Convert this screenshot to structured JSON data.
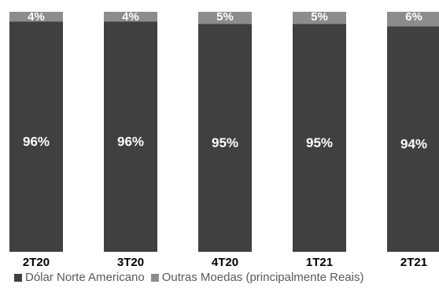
{
  "chart_data": {
    "type": "bar",
    "stacked": true,
    "percent_stacked": true,
    "categories": [
      "2T20",
      "3T20",
      "4T20",
      "1T21",
      "2T21"
    ],
    "series": [
      {
        "name": "Dólar Norte Americano",
        "values": [
          96,
          96,
          95,
          95,
          94
        ],
        "labels": [
          "96%",
          "96%",
          "95%",
          "95%",
          "94%"
        ],
        "color": "#404040"
      },
      {
        "name": "Outras Moedas (principalmente Reais)",
        "values": [
          4,
          4,
          5,
          5,
          6
        ],
        "labels": [
          "4%",
          "4%",
          "5%",
          "5%",
          "6%"
        ],
        "color": "#8c8c8c"
      }
    ],
    "ylim": [
      0,
      100
    ],
    "grid": false,
    "legend_position": "bottom-left",
    "colors": {
      "label_text": "#ffffff",
      "category_text": "#000000",
      "legend_text": "#595959"
    }
  }
}
